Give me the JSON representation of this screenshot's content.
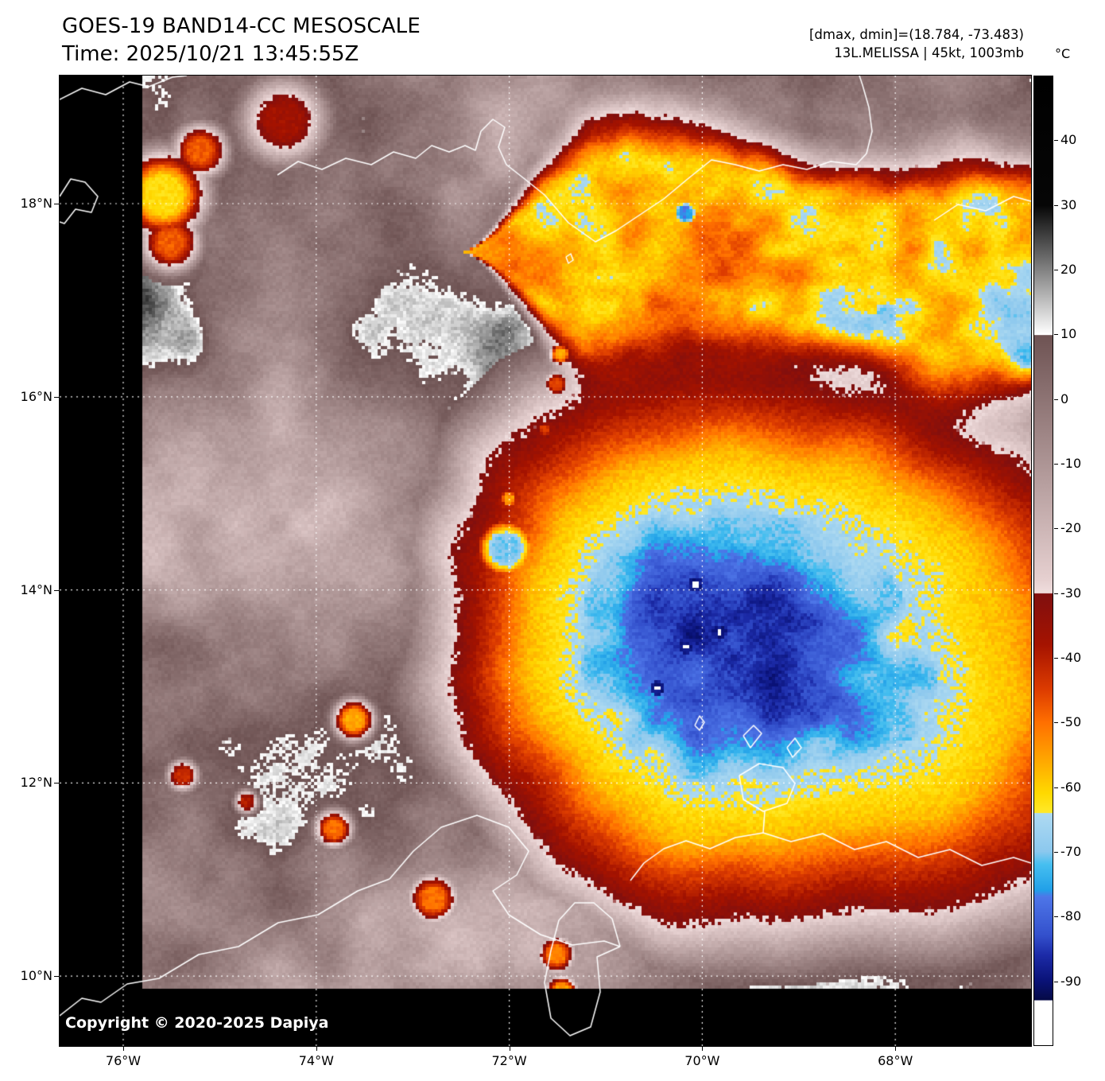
{
  "header": {
    "title": "GOES-19 BAND14-CC MESOSCALE",
    "time_line": "Time: 2025/10/21 13:45:55Z",
    "extremes_line": "[dmax, dmin]=(18.784, -73.483)",
    "storm_line": "13L.MELISSA | 45kt, 1003mb"
  },
  "colorbar": {
    "unit_label": "°C",
    "value_range": [
      50,
      -100
    ],
    "tick_values": [
      40,
      30,
      20,
      10,
      0,
      -10,
      -20,
      -30,
      -40,
      -50,
      -60,
      -70,
      -80,
      -90
    ],
    "gradient_stops": [
      [
        50,
        "#000000"
      ],
      [
        30,
        "#060606"
      ],
      [
        10,
        "#ffffff"
      ],
      [
        9.9,
        "#6e5353"
      ],
      [
        -28,
        "#e6d0d0"
      ],
      [
        -30,
        "#f0dede"
      ],
      [
        -30.1,
        "#800f0f"
      ],
      [
        -38,
        "#a51300"
      ],
      [
        -45,
        "#dd3c00"
      ],
      [
        -50,
        "#ff6f00"
      ],
      [
        -56,
        "#ffa800"
      ],
      [
        -61,
        "#ffd900"
      ],
      [
        -64,
        "#ffe92a"
      ],
      [
        -64.1,
        "#aedaf2"
      ],
      [
        -70,
        "#8cc8ee"
      ],
      [
        -72,
        "#46bff0"
      ],
      [
        -76,
        "#21a0e8"
      ],
      [
        -77,
        "#4e76e8"
      ],
      [
        -83,
        "#3350cc"
      ],
      [
        -86,
        "#1c2ba8"
      ],
      [
        -90,
        "#0a1278"
      ],
      [
        -93,
        "#050a46"
      ],
      [
        -93.1,
        "#ffffff"
      ],
      [
        -100,
        "#ffffff"
      ]
    ]
  },
  "axes": {
    "lat_ticks": [
      {
        "deg": 18,
        "label": "18°N"
      },
      {
        "deg": 16,
        "label": "16°N"
      },
      {
        "deg": 14,
        "label": "14°N"
      },
      {
        "deg": 12,
        "label": "12°N"
      },
      {
        "deg": 10,
        "label": "10°N"
      }
    ],
    "lon_ticks": [
      {
        "deg": -76,
        "label": "76°W"
      },
      {
        "deg": -74,
        "label": "74°W"
      },
      {
        "deg": -72,
        "label": "72°W"
      },
      {
        "deg": -70,
        "label": "70°W"
      },
      {
        "deg": -68,
        "label": "68°W"
      }
    ]
  },
  "map": {
    "copyright": "Copyright © 2020-2025 Dapiya"
  }
}
